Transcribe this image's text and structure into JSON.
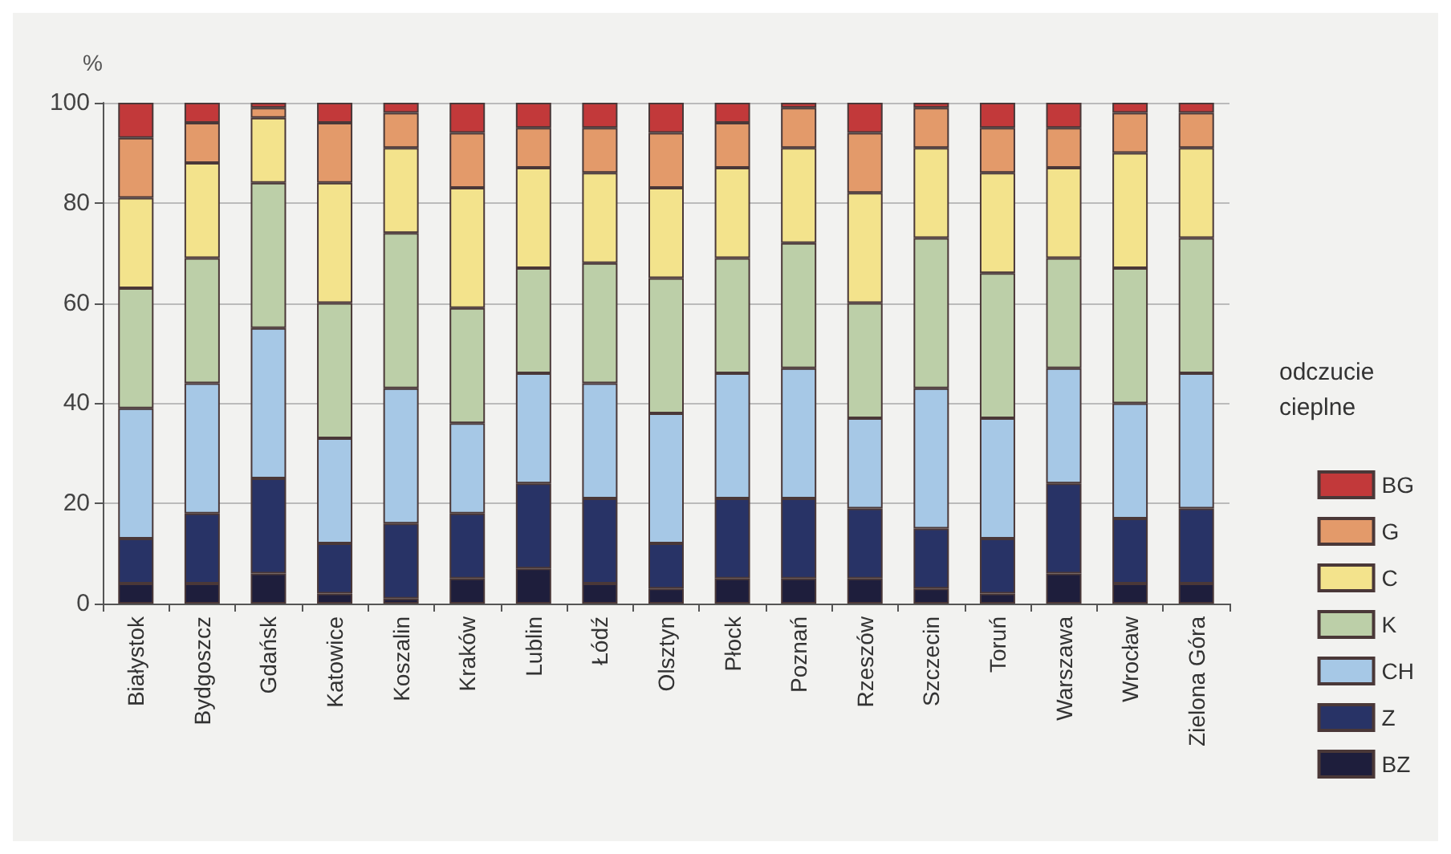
{
  "chart_data": {
    "type": "bar",
    "stacked": true,
    "ylabel": "%",
    "legend_title": "odczucie cieplne",
    "categories": [
      "Białystok",
      "Bydgoszcz",
      "Gdańsk",
      "Katowice",
      "Koszalin",
      "Kraków",
      "Lublin",
      "Łódź",
      "Olsztyn",
      "Płock",
      "Poznań",
      "Rzeszów",
      "Szczecin",
      "Toruń",
      "Warszawa",
      "Wrocław",
      "Zielona Góra"
    ],
    "series": [
      {
        "name": "BZ",
        "color": "#1e1e3c",
        "values": [
          4,
          4,
          6,
          2,
          1,
          5,
          7,
          4,
          3,
          5,
          5,
          5,
          3,
          2,
          6,
          4,
          4
        ]
      },
      {
        "name": "Z",
        "color": "#283366",
        "values": [
          9,
          14,
          19,
          10,
          15,
          13,
          17,
          17,
          9,
          16,
          16,
          14,
          12,
          11,
          18,
          13,
          15
        ]
      },
      {
        "name": "CH",
        "color": "#a6c8e6",
        "values": [
          26,
          26,
          30,
          21,
          27,
          18,
          22,
          23,
          26,
          25,
          26,
          18,
          28,
          24,
          23,
          23,
          27
        ]
      },
      {
        "name": "K",
        "color": "#bccfa8",
        "values": [
          24,
          25,
          29,
          27,
          31,
          23,
          21,
          24,
          27,
          23,
          25,
          23,
          30,
          29,
          22,
          27,
          27
        ]
      },
      {
        "name": "C",
        "color": "#f3e38c",
        "values": [
          18,
          19,
          13,
          24,
          17,
          24,
          20,
          18,
          18,
          18,
          19,
          22,
          18,
          20,
          18,
          23,
          18
        ]
      },
      {
        "name": "G",
        "color": "#e39a6a",
        "values": [
          12,
          8,
          2,
          12,
          7,
          11,
          8,
          9,
          11,
          9,
          8,
          12,
          8,
          9,
          8,
          8,
          7
        ]
      },
      {
        "name": "BG",
        "color": "#c2393a",
        "values": [
          7,
          4,
          1,
          4,
          2,
          6,
          5,
          5,
          6,
          4,
          1,
          6,
          1,
          5,
          5,
          2,
          2
        ]
      }
    ],
    "ylim": [
      0,
      100
    ],
    "yticks": [
      0,
      20,
      40,
      60,
      80,
      100
    ],
    "grid": "y",
    "legend": "right"
  }
}
